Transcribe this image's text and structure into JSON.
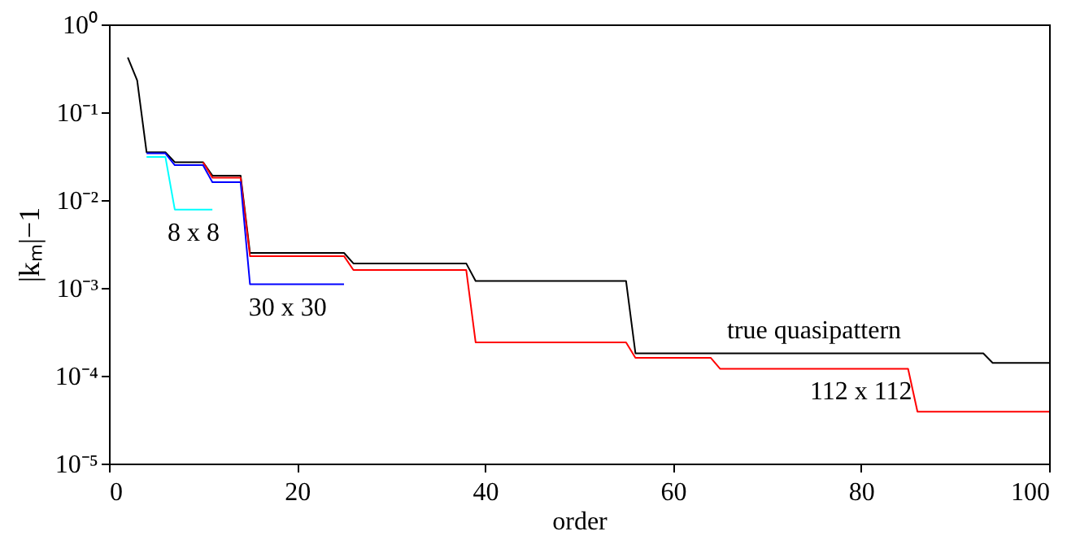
{
  "chart_data": {
    "type": "line",
    "xlabel": "order",
    "ylabel": "|kₘ|−1",
    "log": "y",
    "grid": false,
    "marker": "none",
    "line_style": "solid",
    "xlim": [
      0,
      100
    ],
    "xticks": [
      0,
      20,
      40,
      60,
      80,
      100
    ],
    "ylim": [
      1e-05,
      1
    ],
    "yticks": [
      {
        "value": 1,
        "label": "10⁰"
      },
      {
        "value": 0.1,
        "label": "10⁻¹"
      },
      {
        "value": 0.01,
        "label": "10⁻²"
      },
      {
        "value": 0.001,
        "label": "10⁻³"
      },
      {
        "value": 0.0001,
        "label": "10⁻⁴"
      },
      {
        "value": 1e-05,
        "label": "10⁻⁵"
      }
    ],
    "series": [
      {
        "color": "#000000",
        "x": [
          2,
          3,
          4,
          6,
          7,
          10,
          11,
          14,
          15,
          25,
          26,
          38,
          39,
          55,
          56,
          93,
          94,
          100
        ],
        "values": [
          0.42,
          0.23,
          0.035,
          0.035,
          0.027,
          0.027,
          0.019,
          0.019,
          0.0025,
          0.0025,
          0.0019,
          0.0019,
          0.0012,
          0.0012,
          0.00018,
          0.00018,
          0.00014,
          0.00014
        ]
      },
      {
        "color": "#ff0000",
        "x": [
          10,
          11,
          14,
          15,
          25,
          26,
          38,
          39,
          55,
          56,
          64,
          65,
          85,
          86,
          100
        ],
        "values": [
          0.027,
          0.018,
          0.018,
          0.0023,
          0.0023,
          0.0016,
          0.0016,
          0.00024,
          0.00024,
          0.00016,
          0.00016,
          0.00012,
          0.00012,
          3.9e-05,
          3.9e-05
        ]
      },
      {
        "color": "#0000ff",
        "x": [
          4,
          6,
          7,
          10,
          11,
          14,
          15,
          25
        ],
        "values": [
          0.034,
          0.034,
          0.025,
          0.025,
          0.016,
          0.016,
          0.0011,
          0.0011
        ]
      },
      {
        "color": "#00ffff",
        "x": [
          4,
          6,
          7,
          11
        ],
        "values": [
          0.031,
          0.031,
          0.0078,
          0.0078
        ]
      }
    ],
    "annotations": [
      {
        "text": "8 x 8",
        "x": 9,
        "y": 0.0078
      },
      {
        "text": "30 x 30",
        "x": 19,
        "y": 0.0011
      },
      {
        "text": "true quasipattern",
        "x": 75,
        "y": 0.00018
      },
      {
        "text": "112 x 112",
        "x": 80,
        "y": 0.00012
      }
    ]
  }
}
